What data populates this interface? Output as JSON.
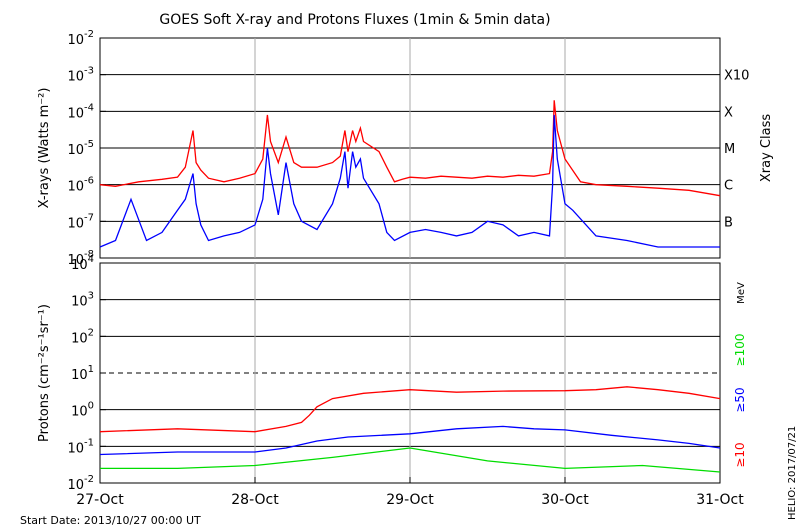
{
  "title": "GOES Soft X-ray and Protons Fluxes   (1min & 5min data)",
  "footer": {
    "start_date": "Start Date: 2013/10/27 00:00 UT",
    "credit": "HELIO: 2017/07/21"
  },
  "chart_data": [
    {
      "type": "line",
      "ylabel": "X-rays (Watts m⁻²)",
      "yscale": "log",
      "ylim": [
        1e-08,
        0.01
      ],
      "yticks": [
        {
          "value": 0.01,
          "base": "10",
          "exp": "-2"
        },
        {
          "value": 0.001,
          "base": "10",
          "exp": "-3"
        },
        {
          "value": 0.0001,
          "base": "10",
          "exp": "-4"
        },
        {
          "value": 1e-05,
          "base": "10",
          "exp": "-5"
        },
        {
          "value": 1e-06,
          "base": "10",
          "exp": "-6"
        },
        {
          "value": 1e-07,
          "base": "10",
          "exp": "-7"
        },
        {
          "value": 1e-08,
          "base": "10",
          "exp": "-8"
        }
      ],
      "right_axis_title": "Xray Class",
      "classes": [
        {
          "label": "X10",
          "value": 0.001
        },
        {
          "label": "X",
          "value": 0.0001
        },
        {
          "label": "M",
          "value": 1e-05
        },
        {
          "label": "C",
          "value": 1e-06
        },
        {
          "label": "B",
          "value": 1e-07
        }
      ],
      "hgrid": [
        0.001,
        0.0001,
        1e-05,
        1e-06,
        1e-07
      ],
      "series": [
        {
          "color": "#ff0000",
          "x": [
            0,
            0.1,
            0.25,
            0.4,
            0.5,
            0.55,
            0.6,
            0.62,
            0.65,
            0.7,
            0.8,
            0.9,
            1.0,
            1.05,
            1.08,
            1.1,
            1.15,
            1.2,
            1.25,
            1.3,
            1.4,
            1.5,
            1.55,
            1.58,
            1.6,
            1.63,
            1.65,
            1.68,
            1.7,
            1.8,
            1.85,
            1.9,
            1.95,
            2.0,
            2.1,
            2.2,
            2.3,
            2.4,
            2.5,
            2.6,
            2.7,
            2.8,
            2.9,
            2.92,
            2.93,
            2.95,
            3.0,
            3.1,
            3.2,
            3.4,
            3.6,
            3.8,
            4.0
          ],
          "y": [
            1e-06,
            9e-07,
            1.2e-06,
            1.4e-06,
            1.6e-06,
            3e-06,
            3e-05,
            4e-06,
            2.5e-06,
            1.5e-06,
            1.2e-06,
            1.5e-06,
            2e-06,
            5e-06,
            8e-05,
            1.5e-05,
            4e-06,
            2e-05,
            4e-06,
            3e-06,
            3e-06,
            4e-06,
            6e-06,
            3e-05,
            8e-06,
            3e-05,
            1.5e-05,
            3.5e-05,
            1.5e-05,
            8e-06,
            3e-06,
            1.2e-06,
            1.4e-06,
            1.6e-06,
            1.5e-06,
            1.7e-06,
            1.6e-06,
            1.5e-06,
            1.7e-06,
            1.6e-06,
            1.8e-06,
            1.7e-06,
            2e-06,
            8e-06,
            0.0002,
            3e-05,
            5e-06,
            1.2e-06,
            1e-06,
            9e-07,
            8e-07,
            7e-07,
            5e-07
          ]
        },
        {
          "color": "#0000ff",
          "x": [
            0,
            0.1,
            0.2,
            0.3,
            0.4,
            0.5,
            0.55,
            0.6,
            0.62,
            0.65,
            0.7,
            0.8,
            0.9,
            1.0,
            1.05,
            1.08,
            1.1,
            1.15,
            1.2,
            1.25,
            1.3,
            1.4,
            1.5,
            1.55,
            1.58,
            1.6,
            1.63,
            1.65,
            1.68,
            1.7,
            1.8,
            1.85,
            1.9,
            2.0,
            2.1,
            2.2,
            2.3,
            2.4,
            2.5,
            2.6,
            2.7,
            2.8,
            2.9,
            2.92,
            2.93,
            2.95,
            3.0,
            3.05,
            3.2,
            3.4,
            3.6,
            3.8,
            4.0
          ],
          "y": [
            2e-08,
            3e-08,
            4e-07,
            3e-08,
            5e-08,
            2e-07,
            4e-07,
            2e-06,
            3e-07,
            8e-08,
            3e-08,
            4e-08,
            5e-08,
            8e-08,
            4e-07,
            1e-05,
            2e-06,
            1.5e-07,
            4e-06,
            3e-07,
            1e-07,
            6e-08,
            3e-07,
            1.5e-06,
            8e-06,
            8e-07,
            8e-06,
            3e-06,
            5e-06,
            1.5e-06,
            3e-07,
            5e-08,
            3e-08,
            5e-08,
            6e-08,
            5e-08,
            4e-08,
            5e-08,
            1e-07,
            8e-08,
            4e-08,
            5e-08,
            4e-08,
            1e-06,
            8e-05,
            5e-06,
            3e-07,
            2e-07,
            4e-08,
            3e-08,
            2e-08,
            2e-08,
            2e-08
          ]
        }
      ]
    },
    {
      "type": "line",
      "ylabel": "Protons (cm⁻²s⁻¹sr⁻¹)",
      "yscale": "log",
      "ylim": [
        0.01,
        10000
      ],
      "yticks": [
        {
          "value": 10000,
          "base": "10",
          "exp": "4"
        },
        {
          "value": 1000,
          "base": "10",
          "exp": "3"
        },
        {
          "value": 100,
          "base": "10",
          "exp": "2"
        },
        {
          "value": 10,
          "base": "10",
          "exp": "1"
        },
        {
          "value": 1,
          "base": "10",
          "exp": "0"
        },
        {
          "value": 0.1,
          "base": "10",
          "exp": "-1"
        },
        {
          "value": 0.01,
          "base": "10",
          "exp": "-2"
        }
      ],
      "hgrid": [
        1000,
        100,
        1,
        0.1
      ],
      "threshold_dashed": 10,
      "units_label": "MeV",
      "energy_labels": [
        {
          "label": "≥100",
          "color": "#00dd00"
        },
        {
          "label": "≥50",
          "color": "#0000ff"
        },
        {
          "label": "≥10",
          "color": "#ff0000"
        }
      ],
      "series": [
        {
          "name": "≥10",
          "color": "#ff0000",
          "x": [
            0,
            0.5,
            1.0,
            1.2,
            1.3,
            1.35,
            1.4,
            1.5,
            1.7,
            2.0,
            2.3,
            2.6,
            3.0,
            3.2,
            3.4,
            3.6,
            3.8,
            4.0
          ],
          "y": [
            0.25,
            0.3,
            0.25,
            0.35,
            0.45,
            0.7,
            1.2,
            2.0,
            2.8,
            3.5,
            3.0,
            3.2,
            3.3,
            3.5,
            4.2,
            3.5,
            2.8,
            2.0
          ]
        },
        {
          "name": "≥50",
          "color": "#0000ff",
          "x": [
            0,
            0.5,
            1.0,
            1.2,
            1.4,
            1.6,
            2.0,
            2.3,
            2.6,
            2.8,
            3.0,
            3.3,
            3.6,
            3.8,
            4.0
          ],
          "y": [
            0.06,
            0.07,
            0.07,
            0.09,
            0.14,
            0.18,
            0.22,
            0.3,
            0.35,
            0.3,
            0.28,
            0.2,
            0.15,
            0.12,
            0.09
          ]
        },
        {
          "name": "≥100",
          "color": "#00dd00",
          "x": [
            0,
            0.5,
            1.0,
            1.5,
            2.0,
            2.5,
            3.0,
            3.5,
            4.0
          ],
          "y": [
            0.025,
            0.025,
            0.03,
            0.05,
            0.09,
            0.04,
            0.025,
            0.03,
            0.02
          ]
        }
      ]
    }
  ],
  "x_axis": {
    "xlim": [
      0,
      4
    ],
    "ticks": [
      {
        "value": 0,
        "label": "27-Oct"
      },
      {
        "value": 1,
        "label": "28-Oct"
      },
      {
        "value": 2,
        "label": "29-Oct"
      },
      {
        "value": 3,
        "label": "30-Oct"
      },
      {
        "value": 4,
        "label": "31-Oct"
      }
    ],
    "vgrid": [
      1,
      2,
      3
    ]
  }
}
